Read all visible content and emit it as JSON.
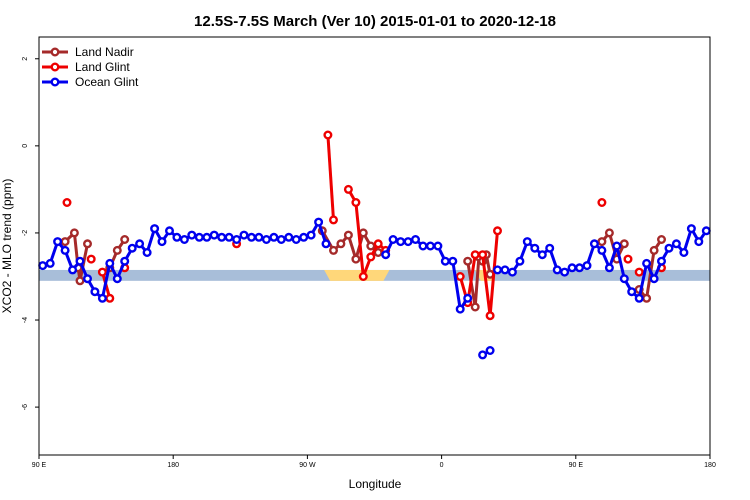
{
  "chart_data": {
    "type": "line",
    "title": "12.5S-7.5S March (Ver 10)   2015-01-01 to 2020-12-18",
    "xlabel": "Longitude",
    "ylabel": "XCO2 - MLO trend (ppm)",
    "xlim": [
      0,
      360
    ],
    "ylim": [
      -7.1,
      2.5
    ],
    "x_ticks": [
      {
        "value": 0,
        "label": "90 E"
      },
      {
        "value": 72,
        "label": "180"
      },
      {
        "value": 144,
        "label": "90 W"
      },
      {
        "value": 216,
        "label": "0"
      },
      {
        "value": 288,
        "label": "90 E"
      },
      {
        "value": 360,
        "label": "180"
      }
    ],
    "y_ticks": [
      {
        "value": 2,
        "label": "2"
      },
      {
        "value": 0,
        "label": "0"
      },
      {
        "value": -2,
        "label": "-2"
      },
      {
        "value": -4,
        "label": "-4"
      },
      {
        "value": -6,
        "label": "-6"
      }
    ],
    "band": {
      "y_low": -3.1,
      "y_high": -2.85,
      "color": "#a8bed9"
    },
    "highlights": [
      {
        "x_start": 153,
        "x_end": 188,
        "color": "#ffd77a"
      },
      {
        "x_start": 234,
        "x_end": 246,
        "color": "#ffd77a"
      }
    ],
    "legend_position": "top-left",
    "series": [
      {
        "name": "Land Nadir",
        "color": "#a52a2a",
        "segments": [
          [
            [
              14,
              -2.2
            ],
            [
              19,
              -2.0
            ],
            [
              21,
              -2.8
            ],
            [
              22,
              -3.1
            ],
            [
              26,
              -2.25
            ]
          ],
          [
            [
              38,
              -2.8
            ],
            [
              42,
              -2.4
            ],
            [
              46,
              -2.15
            ]
          ],
          [
            [
              152,
              -1.95
            ],
            [
              158,
              -2.4
            ],
            [
              162,
              -2.25
            ],
            [
              166,
              -2.05
            ],
            [
              170,
              -2.6
            ],
            [
              174,
              -2.0
            ],
            [
              178,
              -2.3
            ],
            [
              182,
              -2.45
            ]
          ],
          [
            [
              230,
              -2.65
            ],
            [
              234,
              -3.7
            ],
            [
              236,
              -2.55
            ],
            [
              238,
              -2.65
            ],
            [
              240,
              -2.5
            ],
            [
              242,
              -2.95
            ]
          ],
          [
            [
              302,
              -2.2
            ],
            [
              306,
              -2.0
            ],
            [
              310,
              -2.6
            ],
            [
              314,
              -2.25
            ]
          ],
          [
            [
              322,
              -3.3
            ],
            [
              326,
              -3.5
            ],
            [
              330,
              -2.4
            ],
            [
              334,
              -2.15
            ]
          ]
        ]
      },
      {
        "name": "Land Glint",
        "color": "#ee0000",
        "segments": [
          [
            [
              15,
              -1.3
            ]
          ],
          [
            [
              28,
              -2.6
            ]
          ],
          [
            [
              34,
              -2.9
            ],
            [
              38,
              -3.5
            ]
          ],
          [
            [
              46,
              -2.8
            ]
          ],
          [
            [
              106,
              -2.25
            ]
          ],
          [
            [
              155,
              0.25
            ],
            [
              158,
              -1.7
            ]
          ],
          [
            [
              166,
              -1.0
            ],
            [
              170,
              -1.3
            ],
            [
              174,
              -3.0
            ],
            [
              178,
              -2.55
            ],
            [
              182,
              -2.25
            ],
            [
              186,
              -2.4
            ]
          ],
          [
            [
              226,
              -3.0
            ],
            [
              230,
              -3.6
            ],
            [
              234,
              -2.5
            ],
            [
              238,
              -2.5
            ],
            [
              242,
              -3.9
            ],
            [
              246,
              -1.95
            ]
          ],
          [
            [
              302,
              -1.3
            ]
          ],
          [
            [
              316,
              -2.6
            ]
          ],
          [
            [
              322,
              -2.9
            ]
          ],
          [
            [
              334,
              -2.8
            ]
          ]
        ]
      },
      {
        "name": "Ocean Glint",
        "color": "#0000ee",
        "segments": [
          [
            [
              2,
              -2.75
            ],
            [
              6,
              -2.7
            ],
            [
              10,
              -2.2
            ],
            [
              14,
              -2.4
            ],
            [
              18,
              -2.85
            ],
            [
              22,
              -2.65
            ],
            [
              26,
              -3.05
            ],
            [
              30,
              -3.35
            ],
            [
              34,
              -3.5
            ],
            [
              38,
              -2.7
            ],
            [
              42,
              -3.05
            ],
            [
              46,
              -2.65
            ],
            [
              50,
              -2.35
            ],
            [
              54,
              -2.25
            ],
            [
              58,
              -2.45
            ],
            [
              62,
              -1.9
            ],
            [
              66,
              -2.2
            ],
            [
              70,
              -1.95
            ],
            [
              74,
              -2.1
            ],
            [
              78,
              -2.15
            ],
            [
              82,
              -2.05
            ],
            [
              86,
              -2.1
            ],
            [
              90,
              -2.1
            ],
            [
              94,
              -2.05
            ],
            [
              98,
              -2.1
            ],
            [
              102,
              -2.1
            ],
            [
              106,
              -2.15
            ],
            [
              110,
              -2.05
            ],
            [
              114,
              -2.1
            ],
            [
              118,
              -2.1
            ],
            [
              122,
              -2.15
            ],
            [
              126,
              -2.1
            ],
            [
              130,
              -2.15
            ],
            [
              134,
              -2.1
            ],
            [
              138,
              -2.15
            ],
            [
              142,
              -2.1
            ],
            [
              146,
              -2.05
            ],
            [
              150,
              -1.75
            ],
            [
              154,
              -2.25
            ]
          ],
          [
            [
              186,
              -2.5
            ],
            [
              190,
              -2.15
            ],
            [
              194,
              -2.2
            ],
            [
              198,
              -2.2
            ],
            [
              202,
              -2.15
            ],
            [
              206,
              -2.3
            ],
            [
              210,
              -2.3
            ],
            [
              214,
              -2.3
            ],
            [
              218,
              -2.65
            ],
            [
              222,
              -2.65
            ],
            [
              226,
              -3.75
            ],
            [
              230,
              -3.5
            ]
          ],
          [
            [
              238,
              -4.8
            ],
            [
              242,
              -4.7
            ]
          ],
          [
            [
              246,
              -2.85
            ],
            [
              250,
              -2.85
            ],
            [
              254,
              -2.9
            ],
            [
              258,
              -2.65
            ],
            [
              262,
              -2.2
            ],
            [
              266,
              -2.35
            ],
            [
              270,
              -2.5
            ],
            [
              274,
              -2.35
            ],
            [
              278,
              -2.85
            ],
            [
              282,
              -2.9
            ],
            [
              286,
              -2.8
            ],
            [
              290,
              -2.8
            ],
            [
              294,
              -2.75
            ],
            [
              298,
              -2.25
            ],
            [
              302,
              -2.4
            ],
            [
              306,
              -2.8
            ],
            [
              310,
              -2.3
            ],
            [
              314,
              -3.05
            ],
            [
              318,
              -3.35
            ],
            [
              322,
              -3.5
            ],
            [
              326,
              -2.7
            ],
            [
              330,
              -3.05
            ],
            [
              334,
              -2.65
            ],
            [
              338,
              -2.35
            ],
            [
              342,
              -2.25
            ],
            [
              346,
              -2.45
            ],
            [
              350,
              -1.9
            ],
            [
              354,
              -2.2
            ],
            [
              358,
              -1.95
            ]
          ]
        ]
      }
    ]
  }
}
